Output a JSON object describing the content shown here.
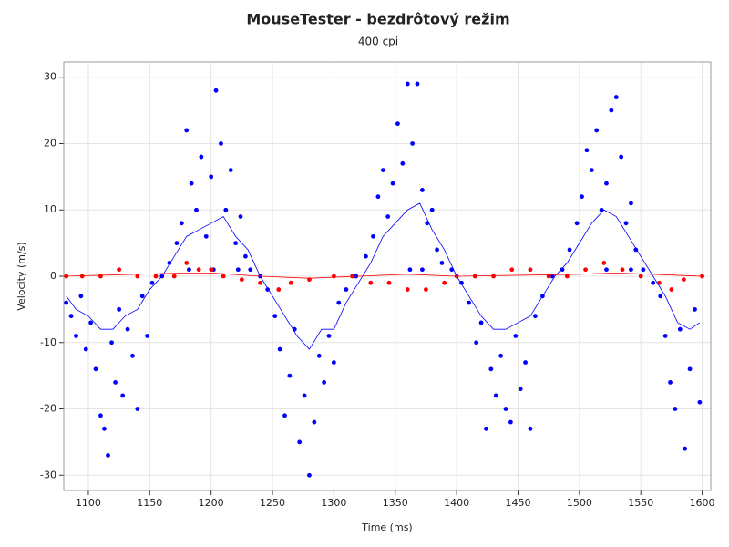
{
  "chart_data": {
    "type": "scatter",
    "title": "MouseTester - bezdrôtový režim",
    "subtitle": "400 cpi",
    "xlabel": "Time (ms)",
    "ylabel": "Velocity (m/s)",
    "xlim": [
      1080,
      1607
    ],
    "ylim": [
      -32.3,
      32.3
    ],
    "xticks": [
      1100,
      1150,
      1200,
      1250,
      1300,
      1350,
      1400,
      1450,
      1500,
      1550,
      1600
    ],
    "yticks": [
      -30,
      -20,
      -10,
      0,
      10,
      20,
      30
    ],
    "grid": true,
    "series": [
      {
        "color": "#0000ff",
        "style": "markers",
        "x": [
          1082,
          1086,
          1090,
          1094,
          1098,
          1102,
          1106,
          1110,
          1113,
          1116,
          1119,
          1122,
          1125,
          1128,
          1132,
          1136,
          1140,
          1144,
          1148,
          1152,
          1160,
          1166,
          1172,
          1176,
          1180,
          1184,
          1188,
          1192,
          1196,
          1200,
          1204,
          1208,
          1212,
          1216,
          1220,
          1224,
          1228,
          1232,
          1240,
          1246,
          1252,
          1256,
          1260,
          1264,
          1268,
          1272,
          1276,
          1280,
          1284,
          1288,
          1292,
          1296,
          1300,
          1304,
          1310,
          1318,
          1326,
          1332,
          1336,
          1340,
          1344,
          1348,
          1352,
          1356,
          1360,
          1364,
          1368,
          1372,
          1376,
          1380,
          1384,
          1388,
          1396,
          1404,
          1410,
          1416,
          1420,
          1424,
          1428,
          1432,
          1436,
          1440,
          1444,
          1448,
          1452,
          1456,
          1460,
          1464,
          1470,
          1478,
          1486,
          1492,
          1498,
          1502,
          1506,
          1510,
          1514,
          1518,
          1522,
          1526,
          1530,
          1534,
          1538,
          1542,
          1546,
          1552,
          1560,
          1566,
          1570,
          1574,
          1578,
          1582,
          1586,
          1590,
          1594,
          1598,
          1182,
          1202,
          1222,
          1362,
          1372,
          1522,
          1542
        ],
        "values": [
          -4,
          -6,
          -9,
          -3,
          -11,
          -7,
          -14,
          -21,
          -23,
          -27,
          -10,
          -16,
          -5,
          -18,
          -8,
          -12,
          -20,
          -3,
          -9,
          -1,
          0,
          2,
          5,
          8,
          22,
          14,
          10,
          18,
          6,
          15,
          28,
          20,
          10,
          16,
          5,
          9,
          3,
          1,
          0,
          -2,
          -6,
          -11,
          -21,
          -15,
          -8,
          -25,
          -18,
          -30,
          -22,
          -12,
          -16,
          -9,
          -13,
          -4,
          -2,
          0,
          3,
          6,
          12,
          16,
          9,
          14,
          23,
          17,
          29,
          20,
          29,
          13,
          8,
          10,
          4,
          2,
          1,
          -1,
          -4,
          -10,
          -7,
          -23,
          -14,
          -18,
          -12,
          -20,
          -22,
          -9,
          -17,
          -13,
          -23,
          -6,
          -3,
          0,
          1,
          4,
          8,
          12,
          19,
          16,
          22,
          10,
          14,
          25,
          27,
          18,
          8,
          11,
          4,
          1,
          -1,
          -3,
          -9,
          -16,
          -20,
          -8,
          -26,
          -14,
          -5,
          -19,
          1,
          1,
          1,
          1,
          1,
          1,
          1
        ]
      },
      {
        "color": "#ff0000",
        "style": "markers",
        "x": [
          1082,
          1095,
          1110,
          1125,
          1140,
          1155,
          1170,
          1180,
          1190,
          1200,
          1210,
          1225,
          1240,
          1255,
          1265,
          1280,
          1300,
          1315,
          1330,
          1345,
          1360,
          1375,
          1390,
          1400,
          1415,
          1430,
          1445,
          1460,
          1475,
          1490,
          1505,
          1520,
          1535,
          1550,
          1565,
          1575,
          1585,
          1600
        ],
        "values": [
          0,
          0,
          0,
          1,
          0,
          0,
          0,
          2,
          1,
          1,
          0,
          -0.5,
          -1,
          -2,
          -1,
          -0.5,
          0,
          0,
          -1,
          -1,
          -2,
          -2,
          -1,
          0,
          0,
          0,
          1,
          1,
          0,
          0,
          1,
          2,
          1,
          0,
          -1,
          -2,
          -0.5,
          0
        ]
      },
      {
        "color": "#0000ff",
        "style": "line",
        "x": [
          1082,
          1090,
          1100,
          1110,
          1120,
          1130,
          1140,
          1150,
          1160,
          1170,
          1180,
          1190,
          1200,
          1210,
          1220,
          1230,
          1240,
          1250,
          1260,
          1270,
          1280,
          1290,
          1300,
          1310,
          1320,
          1330,
          1340,
          1350,
          1360,
          1370,
          1380,
          1390,
          1400,
          1410,
          1420,
          1430,
          1440,
          1450,
          1460,
          1470,
          1480,
          1490,
          1500,
          1510,
          1520,
          1530,
          1540,
          1550,
          1560,
          1570,
          1580,
          1590,
          1598
        ],
        "values": [
          -3,
          -5,
          -6,
          -8,
          -8,
          -6,
          -5,
          -2,
          0,
          3,
          6,
          7,
          8,
          9,
          6,
          4,
          0,
          -3,
          -6,
          -9,
          -11,
          -8,
          -8,
          -4,
          -1,
          2,
          6,
          8,
          10,
          11,
          7,
          4,
          0,
          -3,
          -6,
          -8,
          -8,
          -7,
          -6,
          -3,
          0,
          2,
          5,
          8,
          10,
          9,
          6,
          3,
          0,
          -3,
          -7,
          -8,
          -7
        ]
      },
      {
        "color": "#ff0000",
        "style": "line",
        "x": [
          1080,
          1180,
          1200,
          1240,
          1280,
          1320,
          1360,
          1400,
          1500,
          1530,
          1600
        ],
        "values": [
          0,
          0.5,
          0.5,
          0,
          -0.3,
          0,
          0.3,
          0,
          0.3,
          0.5,
          0
        ]
      }
    ]
  }
}
